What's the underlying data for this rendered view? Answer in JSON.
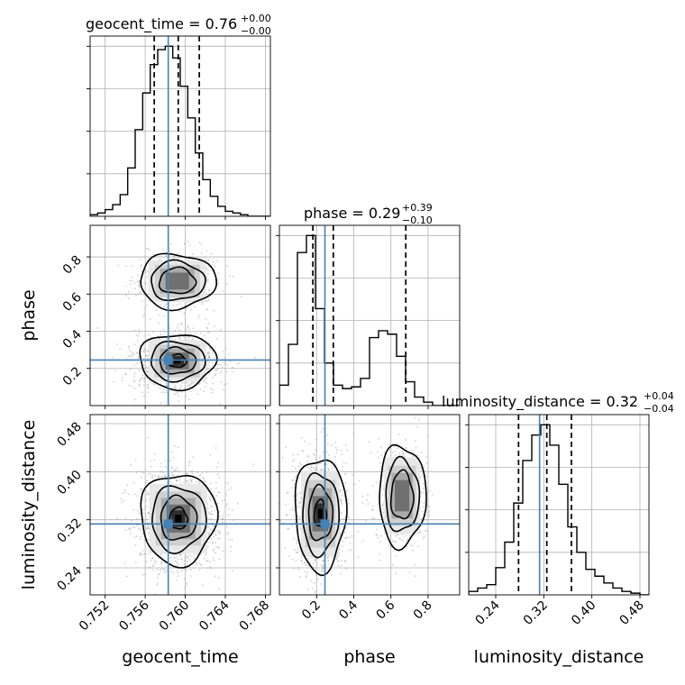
{
  "chart_data": [
    {
      "panel": "geocent_time-marginal",
      "type": "histogram",
      "title_prefix": "geocent_time = 0.76",
      "title_plus": "+0.00",
      "title_minus": "−0.00",
      "x_range": [
        0.7505,
        0.7685
      ],
      "bin_values": [
        1,
        2,
        4,
        7,
        13,
        29,
        52,
        74,
        91,
        100,
        102,
        95,
        78,
        59,
        38,
        22,
        12,
        6,
        3,
        2,
        1,
        0,
        0,
        0
      ],
      "quantiles": [
        0.7569,
        0.7593,
        0.7614
      ],
      "truth": 0.7583,
      "grid": true
    },
    {
      "panel": "phase-marginal",
      "type": "histogram",
      "title_prefix": "phase = 0.29",
      "title_plus": "+0.39",
      "title_minus": "−0.10",
      "x_range": [
        0.0,
        0.97
      ],
      "bin_values": [
        12,
        36,
        90,
        100,
        57,
        25,
        12,
        10,
        11,
        16,
        40,
        44,
        42,
        29,
        14,
        5,
        2,
        0,
        0,
        0
      ],
      "quantiles": [
        0.18,
        0.29,
        0.68
      ],
      "truth": 0.245,
      "grid": true
    },
    {
      "panel": "luminosity_distance-marginal",
      "type": "histogram",
      "title_prefix": "luminosity_distance = 0.32",
      "title_plus": "+0.04",
      "title_minus": "−0.04",
      "x_range": [
        0.195,
        0.495
      ],
      "bin_values": [
        2,
        4,
        6,
        16,
        31,
        54,
        79,
        94,
        100,
        88,
        65,
        40,
        25,
        15,
        11,
        7,
        4,
        2,
        1,
        0
      ],
      "quantiles": [
        0.278,
        0.325,
        0.366
      ],
      "truth": 0.313,
      "grid": true
    },
    {
      "panel": "phase-vs-geocent_time",
      "type": "2d-density",
      "x_range": [
        0.7505,
        0.7685
      ],
      "y_range": [
        0.0,
        0.97
      ],
      "modes": [
        {
          "x": 0.7592,
          "y": 0.24,
          "sx": 0.0018,
          "sy": 0.07,
          "w": 0.68
        },
        {
          "x": 0.7592,
          "y": 0.67,
          "sx": 0.0018,
          "sy": 0.07,
          "w": 0.32
        }
      ],
      "truth": [
        0.7583,
        0.245
      ],
      "grid": true
    },
    {
      "panel": "luminosity_distance-vs-geocent_time",
      "type": "2d-density",
      "x_range": [
        0.7505,
        0.7685
      ],
      "y_range": [
        0.195,
        0.495
      ],
      "modes": [
        {
          "x": 0.7593,
          "y": 0.322,
          "sx": 0.0018,
          "sy": 0.036,
          "w": 1.0
        }
      ],
      "truth": [
        0.7583,
        0.313
      ],
      "grid": true
    },
    {
      "panel": "luminosity_distance-vs-phase",
      "type": "2d-density",
      "x_range": [
        0.0,
        0.97
      ],
      "y_range": [
        0.195,
        0.495
      ],
      "modes": [
        {
          "x": 0.22,
          "y": 0.33,
          "sx": 0.065,
          "sy": 0.045,
          "w": 0.68
        },
        {
          "x": 0.66,
          "y": 0.36,
          "sx": 0.06,
          "sy": 0.04,
          "w": 0.32
        }
      ],
      "truth": [
        0.245,
        0.313
      ],
      "grid": true
    }
  ],
  "axes": {
    "geocent_time": {
      "label": "geocent_time",
      "ticks": [
        0.752,
        0.756,
        0.76,
        0.764,
        0.768
      ],
      "tick_labels": [
        "0.752",
        "0.756",
        "0.760",
        "0.764",
        "0.768"
      ]
    },
    "phase": {
      "label": "phase",
      "ticks": [
        0.2,
        0.4,
        0.6,
        0.8
      ],
      "tick_labels": [
        "0.2",
        "0.4",
        "0.6",
        "0.8"
      ]
    },
    "luminosity_distance": {
      "label": "luminosity_distance",
      "ticks": [
        0.24,
        0.32,
        0.4,
        0.48
      ],
      "tick_labels": [
        "0.24",
        "0.32",
        "0.40",
        "0.48"
      ]
    }
  },
  "colors": {
    "truth": "#4682b4",
    "contour": "#000000",
    "hist": "#000000",
    "quantile": "#000000",
    "scatter": "#a8a8a8",
    "grid": "#b0b0b0"
  }
}
